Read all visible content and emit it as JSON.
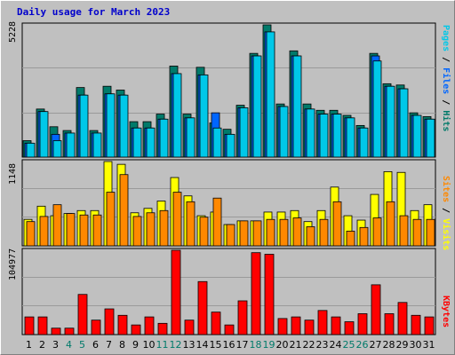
{
  "colors": {
    "pages": "#00c8e8",
    "files": "#0066ff",
    "hits": "#007a6a",
    "visits": "#ffff00",
    "sites": "#ff8800",
    "kbytes": "#ff0000",
    "panel": "#c0c0c0",
    "grid": "#9a9a9a",
    "day_normal": "#000000",
    "day_weekend": "#007a6a"
  },
  "chart_data": [
    {
      "type": "bar",
      "title": "Daily usage for March 2023",
      "panel": "hits-files-pages",
      "categories": [
        "1",
        "2",
        "3",
        "4",
        "5",
        "6",
        "7",
        "8",
        "9",
        "10",
        "11",
        "12",
        "13",
        "14",
        "15",
        "16",
        "17",
        "18",
        "19",
        "20",
        "21",
        "22",
        "23",
        "24",
        "25",
        "26",
        "27",
        "28",
        "29",
        "30",
        "31"
      ],
      "weekend_days": [
        "4",
        "5",
        "11",
        "12",
        "18",
        "19",
        "25",
        "26"
      ],
      "ymax_label": "5228",
      "ylim": [
        0,
        5228
      ],
      "series": [
        {
          "name": "Hits",
          "values": [
            650,
            1900,
            1200,
            1050,
            2750,
            1050,
            2800,
            2650,
            1400,
            1400,
            1700,
            3600,
            1700,
            3550,
            1350,
            1100,
            2050,
            4100,
            5228,
            2100,
            4200,
            2100,
            1850,
            1850,
            1650,
            1250,
            4100,
            2900,
            2850,
            1750,
            1600
          ]
        },
        {
          "name": "Files",
          "values": [
            550,
            1800,
            900,
            950,
            2450,
            950,
            2500,
            2450,
            1150,
            1150,
            1500,
            3300,
            1550,
            3250,
            1750,
            900,
            1950,
            4000,
            4950,
            2000,
            4000,
            1900,
            1700,
            1700,
            1550,
            1150,
            4000,
            2800,
            2700,
            1650,
            1500
          ]
        },
        {
          "name": "Pages",
          "values": [
            550,
            1800,
            650,
            950,
            2450,
            950,
            2500,
            2450,
            1150,
            1150,
            1500,
            3300,
            1550,
            3250,
            1150,
            900,
            1950,
            4000,
            4950,
            2000,
            4000,
            1900,
            1700,
            1700,
            1550,
            1150,
            3800,
            2800,
            2700,
            1650,
            1500
          ]
        }
      ]
    },
    {
      "type": "bar",
      "panel": "visits-sites",
      "categories": [
        "1",
        "2",
        "3",
        "4",
        "5",
        "6",
        "7",
        "8",
        "9",
        "10",
        "11",
        "12",
        "13",
        "14",
        "15",
        "16",
        "17",
        "18",
        "19",
        "20",
        "21",
        "22",
        "23",
        "24",
        "25",
        "26",
        "27",
        "28",
        "29",
        "30",
        "31"
      ],
      "ymax_label": "1148",
      "ylim": [
        0,
        1148
      ],
      "series": [
        {
          "name": "Visits",
          "values": [
            360,
            540,
            410,
            440,
            480,
            480,
            1148,
            1110,
            450,
            510,
            610,
            930,
            680,
            410,
            460,
            290,
            340,
            340,
            460,
            460,
            480,
            330,
            480,
            800,
            410,
            350,
            700,
            1010,
            1000,
            480,
            560
          ]
        },
        {
          "name": "Sites",
          "values": [
            330,
            400,
            560,
            440,
            420,
            420,
            730,
            970,
            400,
            450,
            480,
            730,
            600,
            390,
            650,
            290,
            340,
            340,
            360,
            360,
            380,
            260,
            360,
            600,
            200,
            250,
            380,
            600,
            410,
            360,
            360
          ]
        }
      ]
    },
    {
      "type": "bar",
      "panel": "kbytes",
      "categories": [
        "1",
        "2",
        "3",
        "4",
        "5",
        "6",
        "7",
        "8",
        "9",
        "10",
        "11",
        "12",
        "13",
        "14",
        "15",
        "16",
        "17",
        "18",
        "19",
        "20",
        "21",
        "22",
        "23",
        "24",
        "25",
        "26",
        "27",
        "28",
        "29",
        "30",
        "31"
      ],
      "ymax_label": "104977",
      "ylim": [
        0,
        104977
      ],
      "series": [
        {
          "name": "KBytes",
          "values": [
            22000,
            22000,
            8000,
            8000,
            50000,
            18000,
            32000,
            24000,
            12000,
            22000,
            14000,
            104977,
            18000,
            66000,
            28000,
            12000,
            42000,
            102000,
            100000,
            20000,
            22000,
            18000,
            30000,
            22000,
            16000,
            26000,
            62000,
            26000,
            40000,
            24000,
            22000
          ]
        }
      ]
    }
  ],
  "labels": {
    "legend_top": [
      "Pages",
      " / ",
      "Files",
      " / ",
      "Hits"
    ],
    "legend_mid": [
      "Sites",
      " / ",
      "Visits"
    ],
    "legend_bot": [
      "KBytes"
    ]
  }
}
